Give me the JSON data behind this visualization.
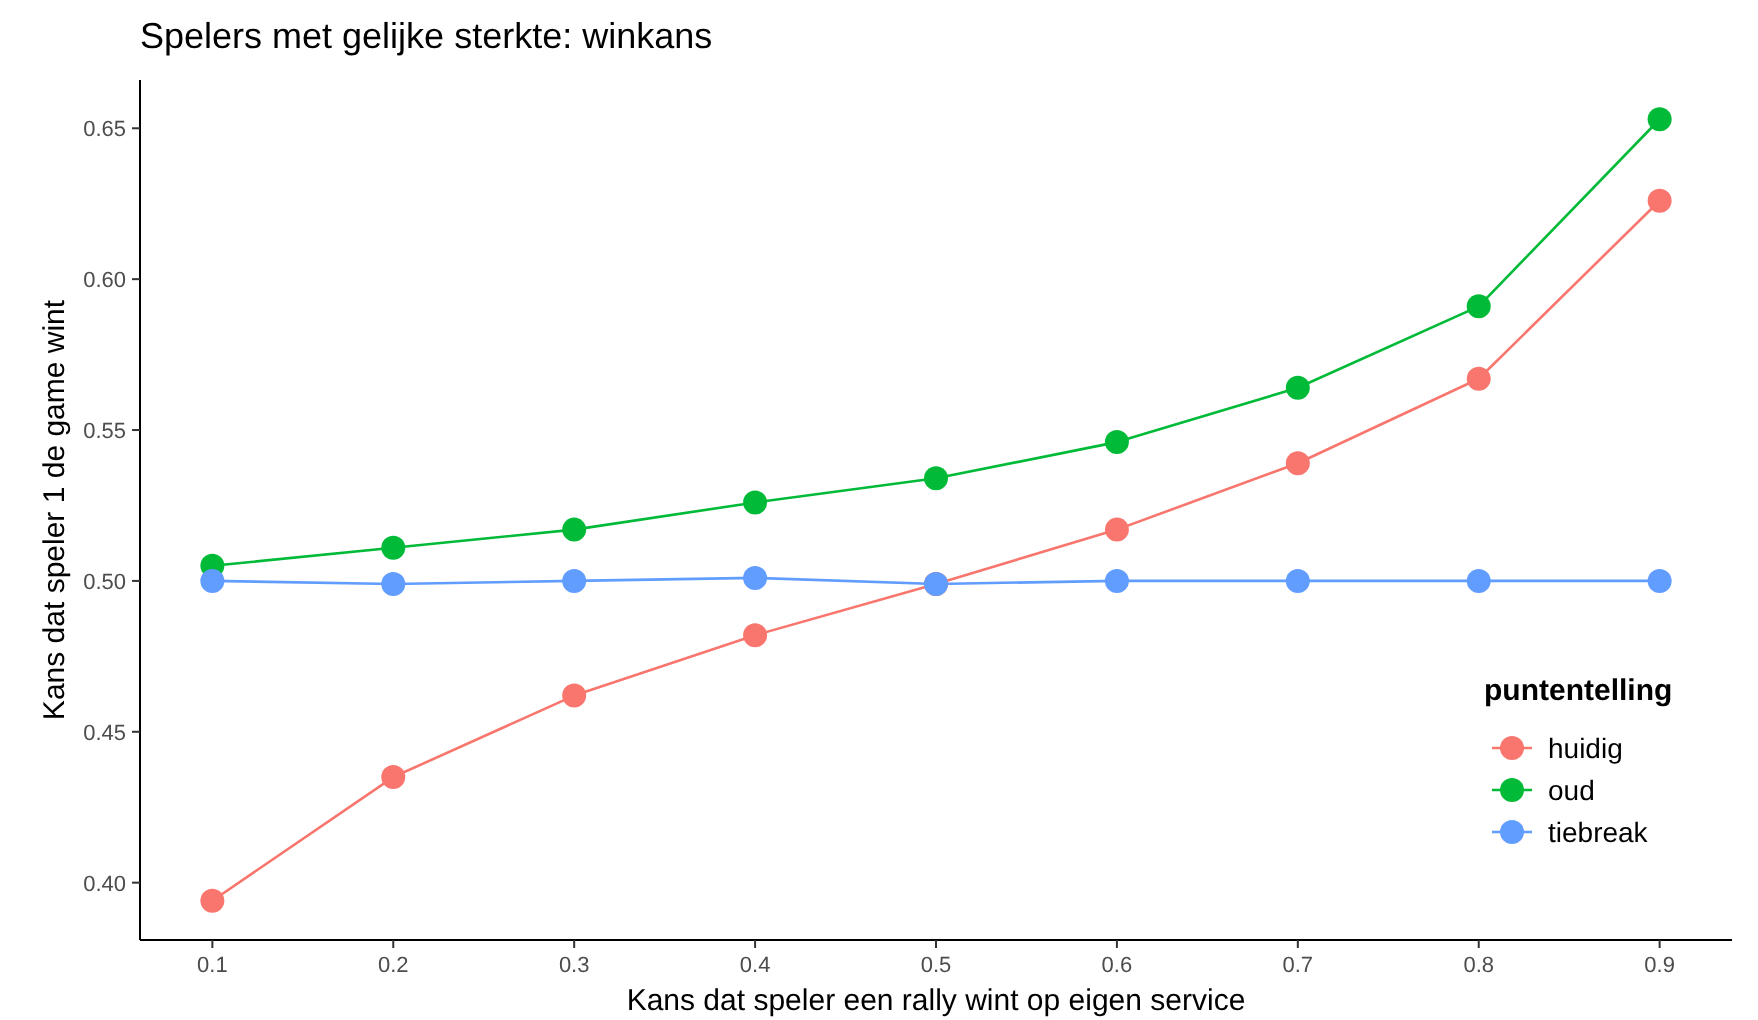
{
  "chart_data": {
    "type": "line",
    "title": "Spelers met gelijke sterkte: winkans",
    "xlabel": "Kans dat speler een rally wint op eigen service",
    "ylabel": "Kans dat speler 1 de game wint",
    "legend_title": "puntentelling",
    "x": [
      0.1,
      0.2,
      0.3,
      0.4,
      0.5,
      0.6,
      0.7,
      0.8,
      0.9
    ],
    "series": [
      {
        "name": "huidig",
        "color": "#f8766d",
        "values": [
          0.394,
          0.435,
          0.462,
          0.482,
          0.499,
          0.517,
          0.539,
          0.567,
          0.626
        ]
      },
      {
        "name": "oud",
        "color": "#00ba38",
        "values": [
          0.505,
          0.511,
          0.517,
          0.526,
          0.534,
          0.546,
          0.564,
          0.591,
          0.653
        ]
      },
      {
        "name": "tiebreak",
        "color": "#619cff",
        "values": [
          0.5,
          0.499,
          0.5,
          0.501,
          0.499,
          0.5,
          0.5,
          0.5,
          0.5
        ]
      }
    ],
    "xlim": [
      0.06,
      0.94
    ],
    "ylim": [
      0.381,
      0.666
    ],
    "xticks": [
      0.1,
      0.2,
      0.3,
      0.4,
      0.5,
      0.6,
      0.7,
      0.8,
      0.9
    ],
    "yticks": [
      {
        "value": 0.4,
        "label": "0.40"
      },
      {
        "value": 0.45,
        "label": "0.45"
      },
      {
        "value": 0.5,
        "label": "0.50"
      },
      {
        "value": 0.55,
        "label": "0.55"
      },
      {
        "value": 0.6,
        "label": "0.60"
      },
      {
        "value": 0.65,
        "label": "0.65"
      }
    ],
    "grid": false,
    "legend": "right",
    "marker": "circle",
    "line_style": "solid"
  }
}
